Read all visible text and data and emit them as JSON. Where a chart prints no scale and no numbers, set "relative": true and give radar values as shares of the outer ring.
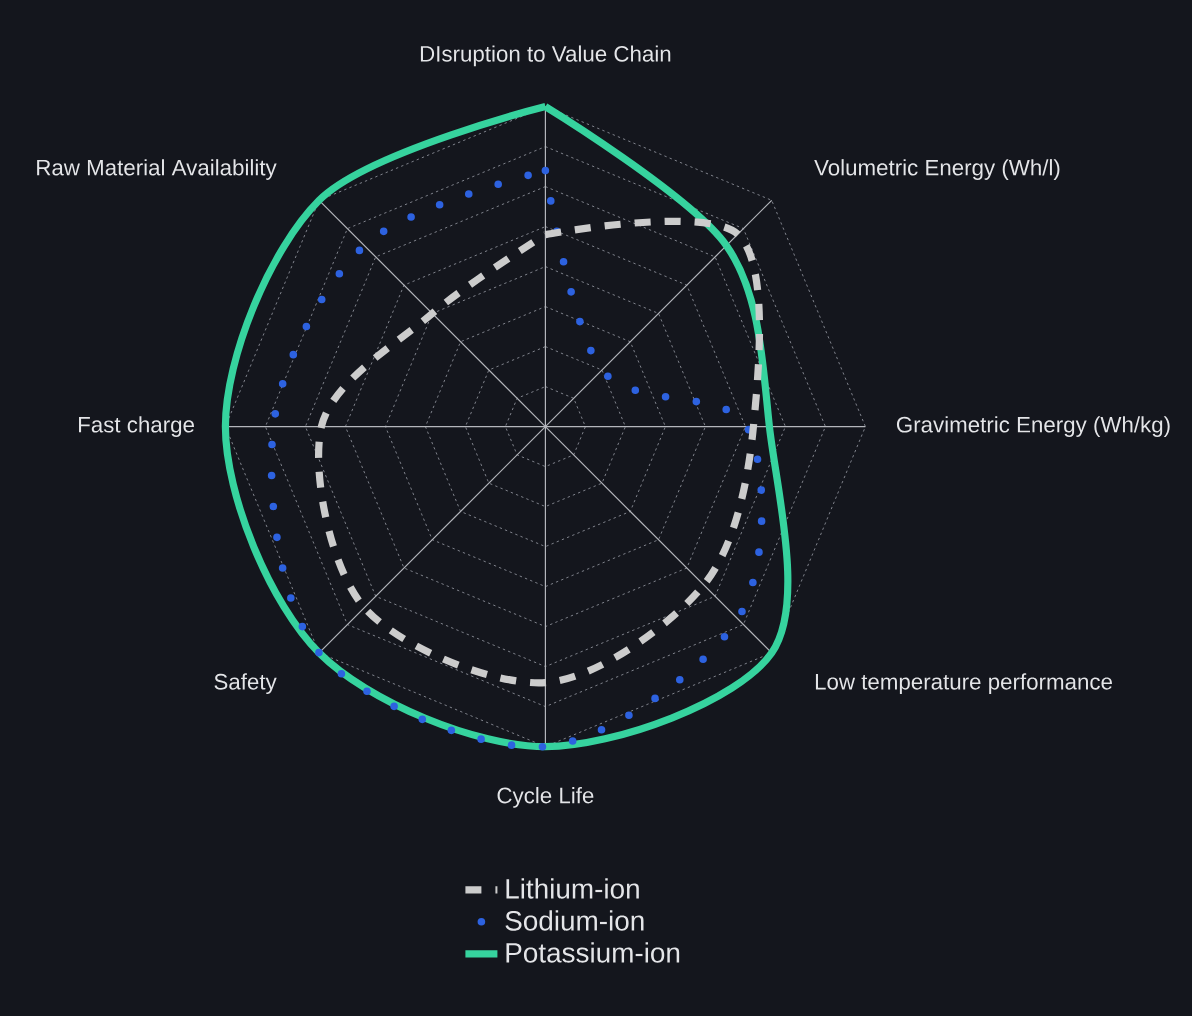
{
  "chart_data": {
    "type": "radar",
    "relative": true,
    "grid": true,
    "legend": "bottom",
    "marker": "none",
    "categories": [
      "DIsruption to Value Chain",
      "Volumetric Energy (Wh/l)",
      "Gravimetric Energy (Wh/kg)",
      "Low temperature performance",
      "Cycle Life",
      "Safety",
      "Fast charge",
      "Raw Material Availability"
    ],
    "series": [
      {
        "name": "Lithium-ion",
        "color": "#cccccc",
        "line_style": "dashed",
        "values": [
          0.6,
          0.85,
          0.65,
          0.7,
          0.8,
          0.8,
          0.7,
          0.5
        ]
      },
      {
        "name": "Sodium-ion",
        "color": "#2d62e0",
        "line_style": "dotted",
        "values": [
          0.8,
          0.25,
          0.63,
          0.85,
          1.0,
          1.0,
          0.85,
          0.8
        ]
      },
      {
        "name": "Potassium-ion",
        "color": "#36d39e",
        "line_style": "solid",
        "values": [
          1.0,
          0.8,
          0.7,
          1.0,
          1.0,
          1.0,
          1.0,
          1.0
        ]
      }
    ]
  }
}
